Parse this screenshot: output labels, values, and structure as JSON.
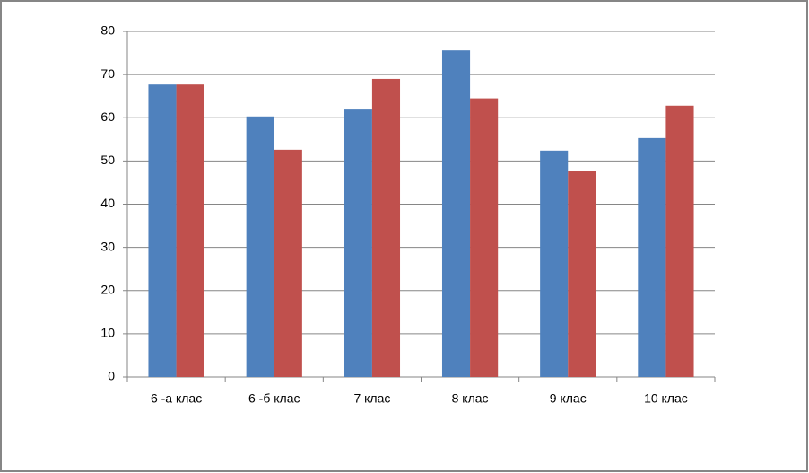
{
  "chart_data": {
    "type": "bar",
    "categories": [
      "6 -а клас",
      "6 -б клас",
      "7 клас",
      "8 клас",
      "9 клас",
      "10 клас"
    ],
    "series": [
      {
        "color": "#4f81bd",
        "values": [
          67.7,
          60.3,
          61.9,
          75.6,
          52.4,
          55.3
        ]
      },
      {
        "color": "#c0504d",
        "values": [
          67.7,
          52.6,
          69.0,
          64.5,
          47.6,
          62.8
        ]
      }
    ],
    "ylim": [
      0,
      80
    ],
    "yticks": [
      0,
      10,
      20,
      30,
      40,
      50,
      60,
      70,
      80
    ],
    "grid": true
  }
}
